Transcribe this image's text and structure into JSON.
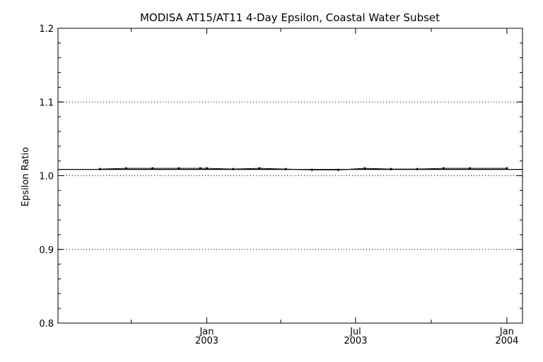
{
  "chart_data": {
    "type": "line",
    "title": "MODISA AT15/AT11 4-Day Epsilon, Coastal Water Subset",
    "xlabel": "",
    "ylabel": "Epsilon Ratio",
    "ylim": [
      0.8,
      1.2
    ],
    "xlim": [
      "2002-07-04",
      "2004-01-20"
    ],
    "yticks": [
      {
        "value": 0.8,
        "label": "0.8"
      },
      {
        "value": 0.9,
        "label": "0.9"
      },
      {
        "value": 1.0,
        "label": "1.0"
      },
      {
        "value": 1.1,
        "label": "1.1"
      },
      {
        "value": 1.2,
        "label": "1.2"
      }
    ],
    "xticks": [
      {
        "date": "2003-01-01",
        "month": "Jan",
        "year": "2003"
      },
      {
        "date": "2003-07-01",
        "month": "Jul",
        "year": "2003"
      },
      {
        "date": "2004-01-01",
        "month": "Jan",
        "year": "2004"
      }
    ],
    "xminor_ticks": [
      "2002-10-01",
      "2003-04-01",
      "2003-10-01"
    ],
    "grid": {
      "y_dotted_at": [
        0.9,
        1.0,
        1.1
      ]
    },
    "reference_line": 1.0085,
    "series": [
      {
        "x": [
          "2002-08-24",
          "2002-09-25",
          "2002-10-27",
          "2002-11-28",
          "2002-12-24",
          "2003-01-01",
          "2003-02-02",
          "2003-03-06",
          "2003-04-07",
          "2003-05-09",
          "2003-06-10",
          "2003-07-12",
          "2003-08-13",
          "2003-09-14",
          "2003-10-16",
          "2003-11-17",
          "2004-01-01"
        ],
        "values": [
          1.009,
          1.01,
          1.01,
          1.01,
          1.01,
          1.01,
          1.009,
          1.01,
          1.009,
          1.008,
          1.008,
          1.01,
          1.009,
          1.009,
          1.01,
          1.01,
          1.01
        ]
      }
    ]
  }
}
